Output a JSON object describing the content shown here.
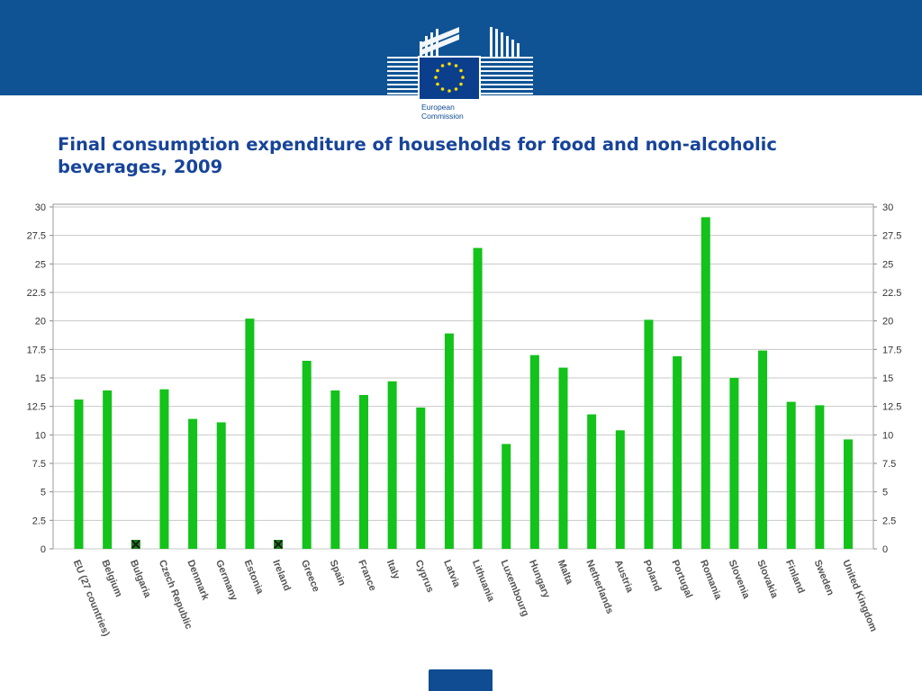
{
  "logo": {
    "line1": "European",
    "line2": "Commission"
  },
  "title": "Final consumption expenditure of households for food and non-alcoholic beverages, 2009",
  "colors": {
    "banner": "#0f5394",
    "bar": "#13c21a",
    "title": "#17449a",
    "missing_marker": "#1a7a1a"
  },
  "chart_data": {
    "type": "bar",
    "title": "Final consumption expenditure of households for food and non-alcoholic beverages, 2009",
    "xlabel": "",
    "ylabel": "",
    "ylim": [
      0,
      30
    ],
    "yticks": [
      0,
      2.5,
      5,
      7.5,
      10,
      12.5,
      15,
      17.5,
      20,
      22.5,
      25,
      27.5,
      30
    ],
    "ytick_labels": [
      "0",
      "2.5",
      "5",
      "7.5",
      "10",
      "12.5",
      "15",
      "17.5",
      "20",
      "22.5",
      "25",
      "27.5",
      "30"
    ],
    "grid": true,
    "legend": "none",
    "categories": [
      "EU (27 countries)",
      "Belgium",
      "Bulgaria",
      "Czech Republic",
      "Denmark",
      "Germany",
      "Estonia",
      "Ireland",
      "Greece",
      "Spain",
      "France",
      "Italy",
      "Cyprus",
      "Latvia",
      "Lithuania",
      "Luxembourg",
      "Hungary",
      "Malta",
      "Netherlands",
      "Austria",
      "Poland",
      "Portugal",
      "Romania",
      "Slovenia",
      "Slovakia",
      "Finland",
      "Sweden",
      "United Kingdom"
    ],
    "values": [
      13.1,
      13.9,
      null,
      14.0,
      11.4,
      11.1,
      20.2,
      null,
      16.5,
      13.9,
      13.5,
      14.7,
      12.4,
      18.9,
      26.4,
      9.2,
      17.0,
      15.9,
      11.8,
      10.4,
      20.1,
      16.9,
      29.1,
      15.0,
      17.4,
      12.9,
      12.6,
      9.6
    ]
  }
}
